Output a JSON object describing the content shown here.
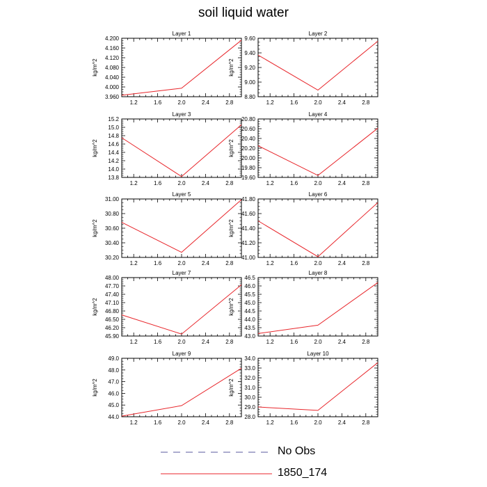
{
  "title": "soil liquid water",
  "legend": [
    {
      "label": "No Obs",
      "color": "#5a5a9e",
      "style": "dashed"
    },
    {
      "label": "1850_174",
      "color": "#e8262b",
      "style": "solid"
    }
  ],
  "chart_data": [
    {
      "type": "line",
      "title": "Layer 1",
      "ylabel": "kg/m^2",
      "xlim": [
        1.0,
        3.0
      ],
      "xticks": [
        1.2,
        1.6,
        2.0,
        2.4,
        2.8
      ],
      "ylim": [
        3.96,
        4.2
      ],
      "yticks": [
        "3.960",
        "4.000",
        "4.040",
        "4.080",
        "4.120",
        "4.160",
        "4.200"
      ],
      "series": [
        {
          "name": "1850_174",
          "x": [
            1,
            2,
            3
          ],
          "values": [
            3.966,
            3.995,
            4.192
          ]
        }
      ]
    },
    {
      "type": "line",
      "title": "Layer 2",
      "ylabel": "kg/m^2",
      "xlim": [
        1.0,
        3.0
      ],
      "xticks": [
        1.2,
        1.6,
        2.0,
        2.4,
        2.8
      ],
      "ylim": [
        8.8,
        9.6
      ],
      "yticks": [
        "8.80",
        "9.00",
        "9.20",
        "9.40",
        "9.60"
      ],
      "series": [
        {
          "name": "1850_174",
          "x": [
            1,
            2,
            3
          ],
          "values": [
            9.37,
            8.89,
            9.56
          ]
        }
      ]
    },
    {
      "type": "line",
      "title": "Layer 3",
      "ylabel": "kg/m^2",
      "xlim": [
        1.0,
        3.0
      ],
      "xticks": [
        1.2,
        1.6,
        2.0,
        2.4,
        2.8
      ],
      "ylim": [
        13.8,
        15.2
      ],
      "yticks": [
        "13.8",
        "14.0",
        "14.2",
        "14.4",
        "14.6",
        "14.8",
        "15.0",
        "15.2"
      ],
      "series": [
        {
          "name": "1850_174",
          "x": [
            1,
            2,
            3
          ],
          "values": [
            14.75,
            13.82,
            15.06
          ]
        }
      ]
    },
    {
      "type": "line",
      "title": "Layer 4",
      "ylabel": "kg/m^2",
      "xlim": [
        1.0,
        3.0
      ],
      "xticks": [
        1.2,
        1.6,
        2.0,
        2.4,
        2.8
      ],
      "ylim": [
        19.6,
        20.8
      ],
      "yticks": [
        "19.60",
        "19.80",
        "20.00",
        "20.20",
        "20.40",
        "20.60",
        "20.80"
      ],
      "series": [
        {
          "name": "1850_174",
          "x": [
            1,
            2,
            3
          ],
          "values": [
            20.25,
            19.64,
            20.61
          ]
        }
      ]
    },
    {
      "type": "line",
      "title": "Layer 5",
      "ylabel": "kg/m^2",
      "xlim": [
        1.0,
        3.0
      ],
      "xticks": [
        1.2,
        1.6,
        2.0,
        2.4,
        2.8
      ],
      "ylim": [
        30.2,
        31.0
      ],
      "yticks": [
        "30.20",
        "30.40",
        "30.60",
        "30.80",
        "31.00"
      ],
      "series": [
        {
          "name": "1850_174",
          "x": [
            1,
            2,
            3
          ],
          "values": [
            30.68,
            30.27,
            30.99
          ]
        }
      ]
    },
    {
      "type": "line",
      "title": "Layer 6",
      "ylabel": "kg/m^2",
      "xlim": [
        1.0,
        3.0
      ],
      "xticks": [
        1.2,
        1.6,
        2.0,
        2.4,
        2.8
      ],
      "ylim": [
        41.0,
        41.8
      ],
      "yticks": [
        "41.00",
        "41.20",
        "41.40",
        "41.60",
        "41.80"
      ],
      "series": [
        {
          "name": "1850_174",
          "x": [
            1,
            2,
            3
          ],
          "values": [
            41.5,
            41.01,
            41.75
          ]
        }
      ]
    },
    {
      "type": "line",
      "title": "Layer 7",
      "ylabel": "kg/m^2",
      "xlim": [
        1.0,
        3.0
      ],
      "xticks": [
        1.2,
        1.6,
        2.0,
        2.4,
        2.8
      ],
      "ylim": [
        45.9,
        48.0
      ],
      "yticks": [
        "45.90",
        "46.20",
        "46.50",
        "46.80",
        "47.10",
        "47.40",
        "47.70",
        "48.00"
      ],
      "series": [
        {
          "name": "1850_174",
          "x": [
            1,
            2,
            3
          ],
          "values": [
            46.66,
            45.97,
            47.74
          ]
        }
      ]
    },
    {
      "type": "line",
      "title": "Layer 8",
      "ylabel": "kg/m^2",
      "xlim": [
        1.0,
        3.0
      ],
      "xticks": [
        1.2,
        1.6,
        2.0,
        2.4,
        2.8
      ],
      "ylim": [
        43.0,
        46.5
      ],
      "yticks": [
        "43.0",
        "43.5",
        "44.0",
        "44.5",
        "45.0",
        "45.5",
        "46.0",
        "46.5"
      ],
      "series": [
        {
          "name": "1850_174",
          "x": [
            1,
            2,
            3
          ],
          "values": [
            43.15,
            43.65,
            46.2
          ]
        }
      ]
    },
    {
      "type": "line",
      "title": "Layer 9",
      "ylabel": "kg/m^2",
      "xlim": [
        1.0,
        3.0
      ],
      "xticks": [
        1.2,
        1.6,
        2.0,
        2.4,
        2.8
      ],
      "ylim": [
        44.0,
        49.0
      ],
      "yticks": [
        "44.0",
        "45.0",
        "46.0",
        "47.0",
        "48.0",
        "49.0"
      ],
      "series": [
        {
          "name": "1850_174",
          "x": [
            1,
            2,
            3
          ],
          "values": [
            44.05,
            44.95,
            48.15
          ]
        }
      ]
    },
    {
      "type": "line",
      "title": "Layer 10",
      "ylabel": "kg/m^2",
      "xlim": [
        1.0,
        3.0
      ],
      "xticks": [
        1.2,
        1.6,
        2.0,
        2.4,
        2.8
      ],
      "ylim": [
        28.0,
        34.0
      ],
      "yticks": [
        "28.0",
        "29.0",
        "30.0",
        "31.0",
        "32.0",
        "33.0",
        "34.0"
      ],
      "series": [
        {
          "name": "1850_174",
          "x": [
            1,
            2,
            3
          ],
          "values": [
            29.0,
            28.65,
            33.55
          ]
        }
      ]
    }
  ]
}
